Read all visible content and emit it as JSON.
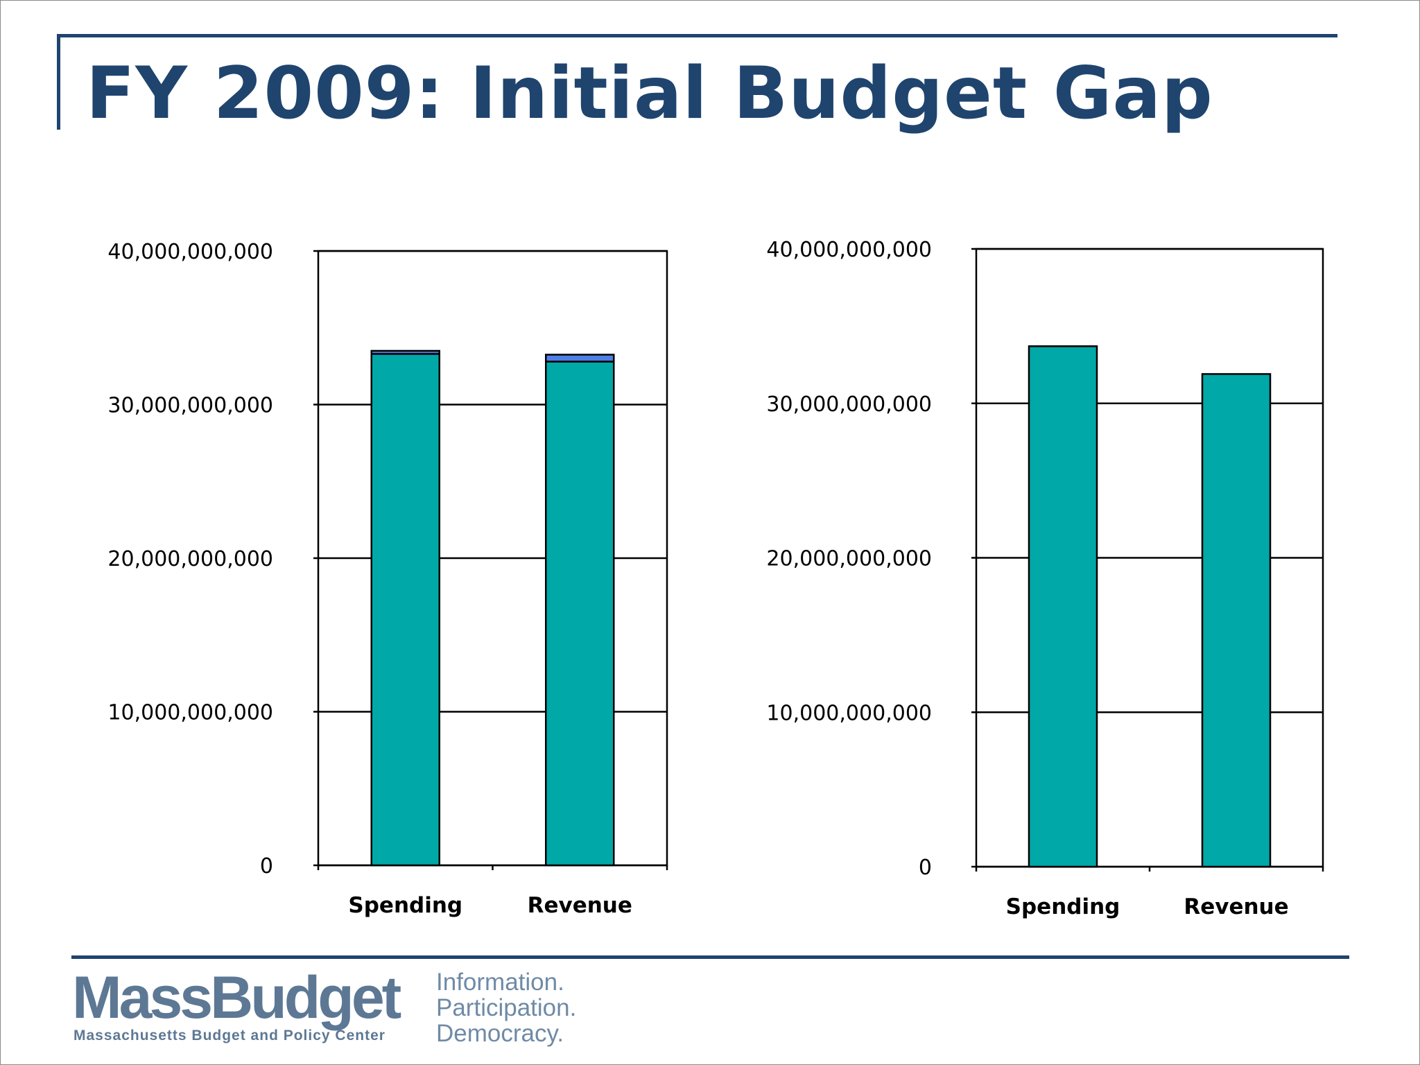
{
  "title": "FY 2009: Initial Budget Gap",
  "colors": {
    "title": "#1f446e",
    "bar_base": "#00a8a8",
    "bar_extra": "#4f7ee6",
    "logo": "#5d7894"
  },
  "chart_data": [
    {
      "type": "bar",
      "stacked": true,
      "categories": [
        "Spending",
        "Revenue"
      ],
      "series": [
        {
          "values": [
            33300000000,
            32800000000
          ],
          "color": "#00a8a8"
        },
        {
          "values": [
            200000000,
            450000000
          ],
          "color": "#4f7ee6"
        }
      ],
      "ylim": [
        0,
        40000000000
      ],
      "yticks": [
        0,
        10000000000,
        20000000000,
        30000000000,
        40000000000
      ],
      "ytick_labels": [
        "0",
        "10,000,000,000",
        "20,000,000,000",
        "30,000,000,000",
        "40,000,000,000"
      ],
      "grid": true,
      "xlabel": "",
      "ylabel": ""
    },
    {
      "type": "bar",
      "categories": [
        "Spending",
        "Revenue"
      ],
      "series": [
        {
          "values": [
            33700000000,
            31900000000
          ],
          "color": "#00a8a8"
        }
      ],
      "ylim": [
        0,
        40000000000
      ],
      "yticks": [
        0,
        10000000000,
        20000000000,
        30000000000,
        40000000000
      ],
      "ytick_labels": [
        "0",
        "10,000,000,000",
        "20,000,000,000",
        "30,000,000,000",
        "40,000,000,000"
      ],
      "grid": true,
      "xlabel": "",
      "ylabel": ""
    }
  ],
  "footer": {
    "logo_text": "MassBudget",
    "logo_subtitle": "Massachusetts Budget and Policy Center",
    "tagline": [
      "Information.",
      "Participation.",
      "Democracy."
    ]
  }
}
